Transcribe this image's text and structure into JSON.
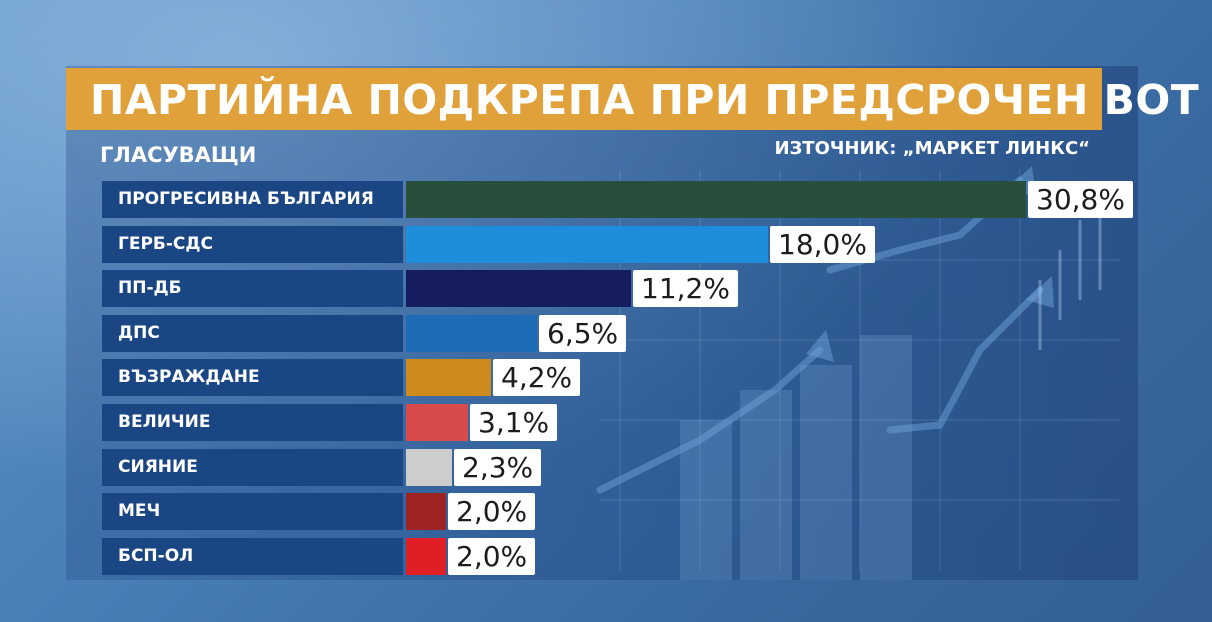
{
  "header": {
    "title": "ПАРТИЙНА ПОДКРЕПА ПРИ ПРЕДСРОЧЕН ВОТ",
    "subtitle": "ГЛАСУВАЩИ",
    "source": "ИЗТОЧНИК: „МАРКЕТ ЛИНКС“"
  },
  "colors": {
    "header_band": "#e0a13b",
    "label_background": "#1a4784",
    "value_box": "#ffffff"
  },
  "chart_data": {
    "type": "bar",
    "orientation": "horizontal",
    "categories": [
      "ПРОГРЕСИВНА БЪЛГАРИЯ",
      "ГЕРБ-СДС",
      "ПП-ДБ",
      "ДПС",
      "ВЪЗРАЖДАНЕ",
      "ВЕЛИЧИЕ",
      "СИЯНИЕ",
      "МЕЧ",
      "БСП-ОЛ"
    ],
    "values": [
      30.8,
      18.0,
      11.2,
      6.5,
      4.2,
      3.1,
      2.3,
      2.0,
      2.0
    ],
    "value_labels": [
      "30,8%",
      "18,0%",
      "11,2%",
      "6,5%",
      "4,2%",
      "3,1%",
      "2,3%",
      "2,0%",
      "2,0%"
    ],
    "bar_colors": [
      "#274f3c",
      "#1d8ddc",
      "#161c60",
      "#1f6cb6",
      "#cc8b1c",
      "#d94a4a",
      "#cdcdcd",
      "#9e2424",
      "#e01f24"
    ],
    "title": "ПАРТИЙНА ПОДКРЕПА ПРИ ПРЕДСРОЧЕН ВОТ",
    "subtitle": "ГЛАСУВАЩИ",
    "source": "ИЗТОЧНИК: „МАРКЕТ ЛИНКС“",
    "unit": "%",
    "xlim": [
      0,
      30.8
    ],
    "grid": false,
    "legend": "none"
  }
}
